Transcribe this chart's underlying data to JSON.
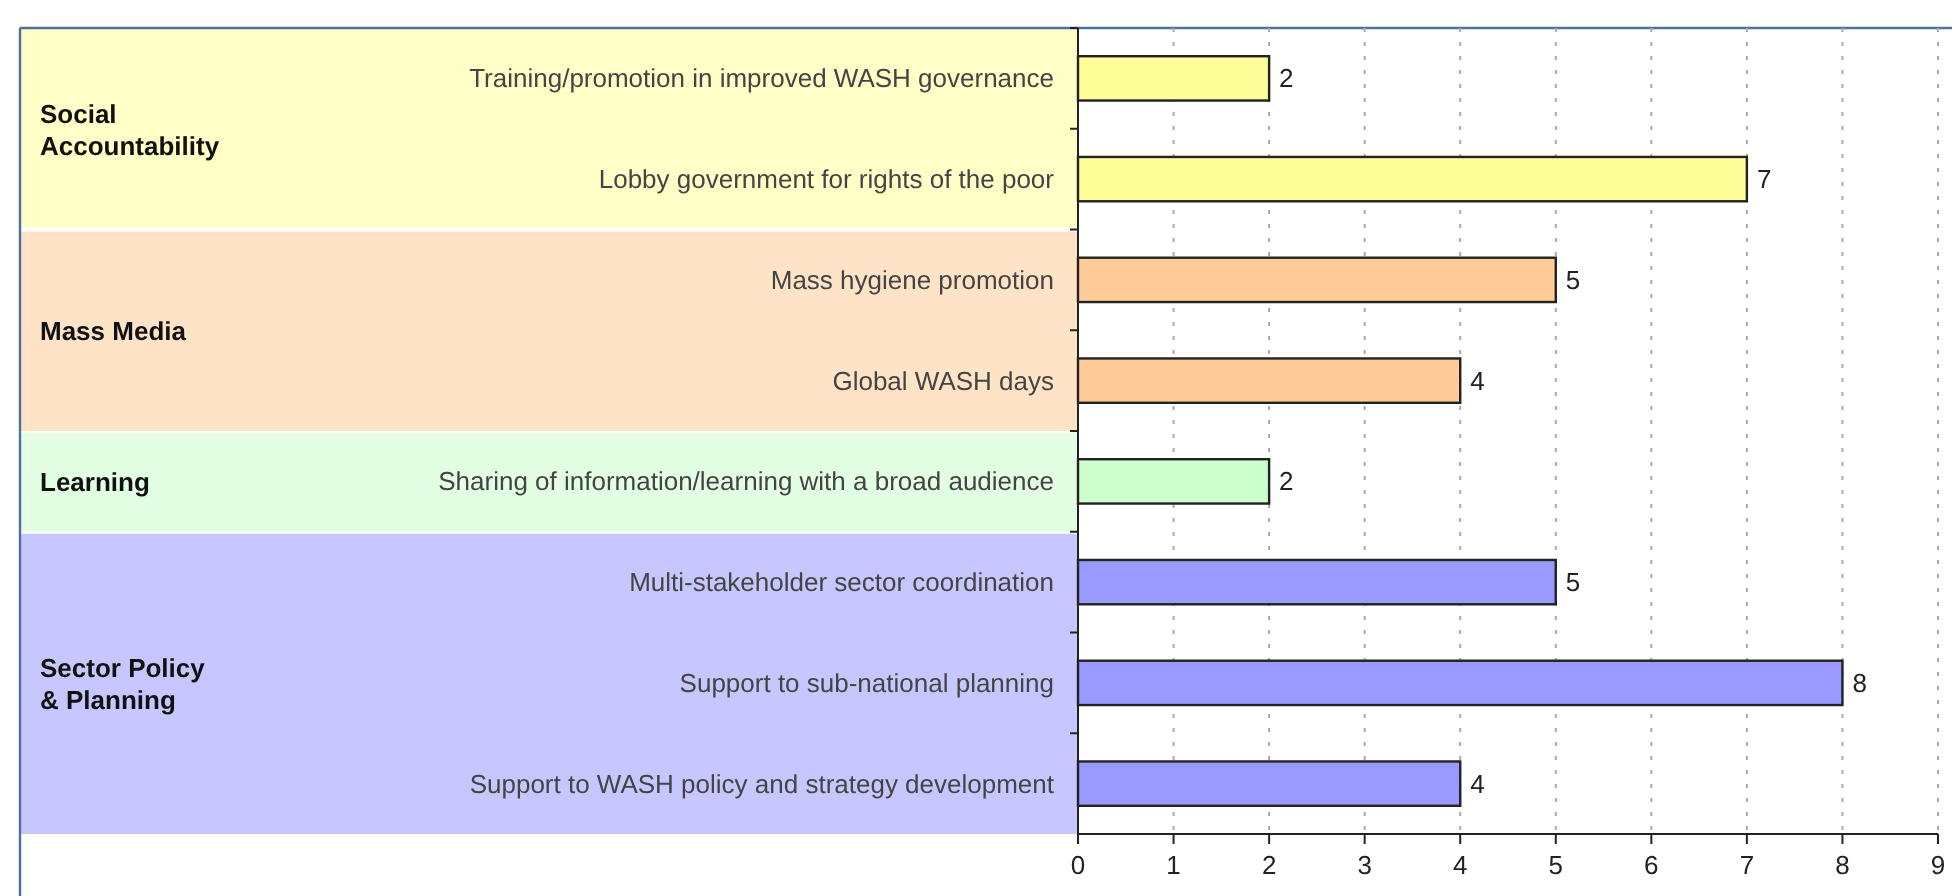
{
  "chart_data": {
    "type": "bar",
    "orientation": "horizontal",
    "categories": [
      "Training/promotion in improved WASH governance",
      "Lobby government for rights of the poor",
      "Mass hygiene promotion",
      "Global WASH days",
      "Sharing of information/learning with a broad audience",
      "Multi-stakeholder sector coordination",
      "Support to sub-national planning",
      "Support to WASH policy and strategy development"
    ],
    "values": [
      2,
      7,
      5,
      4,
      2,
      5,
      8,
      4
    ],
    "colors": [
      "#ffff99",
      "#ffff99",
      "#ffcc99",
      "#ffcc99",
      "#ccffcc",
      "#9999ff",
      "#9999ff",
      "#9999ff"
    ],
    "xlim": [
      0,
      9
    ],
    "xticks": [
      0,
      1,
      2,
      3,
      4,
      5,
      6,
      7,
      8,
      9
    ],
    "grid": "x",
    "data_labels": true,
    "annotations": [
      "Social Accountability",
      "Mass Media",
      "Learning",
      "Sector Policy & Planning"
    ]
  }
}
